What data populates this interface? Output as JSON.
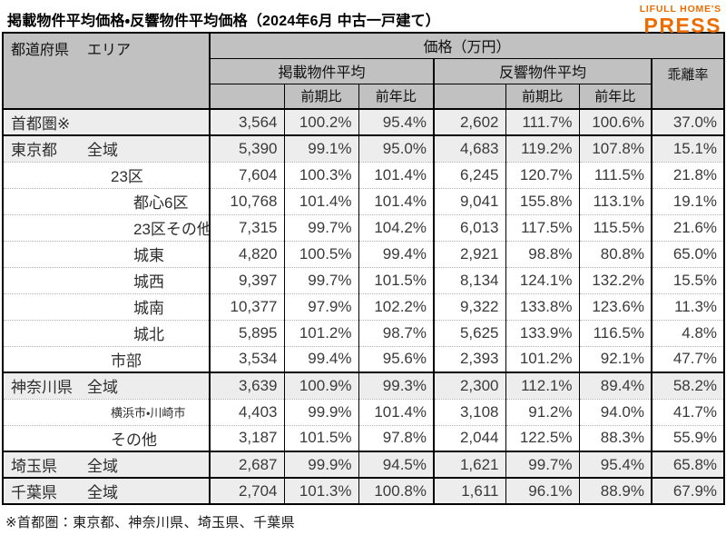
{
  "page": {
    "title": "掲載物件平均価格・反響物件平均価格（2024年6月 中古一戸建て）",
    "note": "※首都圏：東京都、神奈川県、埼玉県、千葉県"
  },
  "logo": {
    "line1": "LIFULL HOME'S",
    "line2": "PRESS",
    "color": "#ed6c00"
  },
  "colors": {
    "header_bg": "#c1c1c1",
    "summary_row_bg": "#ededed",
    "border": "#000000",
    "accent_orange": "#ed6c00"
  },
  "table": {
    "header": {
      "pref_col": "都道府県",
      "area_col": "エリア",
      "price_group": "価格（万円）",
      "listed_group": "掲載物件平均",
      "response_group": "反響物件平均",
      "divergence": "乖離率",
      "prev_period": "前期比",
      "prev_year": "前年比"
    },
    "rows": [
      {
        "pref": "首都圏※",
        "area": "",
        "indent": 0,
        "small": false,
        "summary": true,
        "group_start": false,
        "cells": [
          "3,564",
          "100.2%",
          "95.4%",
          "2,602",
          "111.7%",
          "100.6%",
          "37.0%"
        ]
      },
      {
        "pref": "東京都",
        "area": "全域",
        "indent": 0,
        "small": false,
        "summary": true,
        "group_start": true,
        "cells": [
          "5,390",
          "99.1%",
          "95.0%",
          "4,683",
          "119.2%",
          "107.8%",
          "15.1%"
        ]
      },
      {
        "pref": "",
        "area": "23区",
        "indent": 1,
        "small": false,
        "summary": false,
        "group_start": false,
        "cells": [
          "7,604",
          "100.3%",
          "101.4%",
          "6,245",
          "120.7%",
          "111.5%",
          "21.8%"
        ]
      },
      {
        "pref": "",
        "area": "都心6区",
        "indent": 2,
        "small": false,
        "summary": false,
        "group_start": false,
        "cells": [
          "10,768",
          "101.4%",
          "101.4%",
          "9,041",
          "155.8%",
          "113.1%",
          "19.1%"
        ]
      },
      {
        "pref": "",
        "area": "23区その他",
        "indent": 2,
        "small": false,
        "summary": false,
        "group_start": false,
        "cells": [
          "7,315",
          "99.7%",
          "104.2%",
          "6,013",
          "117.5%",
          "115.5%",
          "21.6%"
        ]
      },
      {
        "pref": "",
        "area": "城東",
        "indent": 2,
        "small": false,
        "summary": false,
        "group_start": false,
        "cells": [
          "4,820",
          "100.5%",
          "99.4%",
          "2,921",
          "98.8%",
          "80.8%",
          "65.0%"
        ]
      },
      {
        "pref": "",
        "area": "城西",
        "indent": 2,
        "small": false,
        "summary": false,
        "group_start": false,
        "cells": [
          "9,397",
          "99.7%",
          "101.5%",
          "8,134",
          "124.1%",
          "132.2%",
          "15.5%"
        ]
      },
      {
        "pref": "",
        "area": "城南",
        "indent": 2,
        "small": false,
        "summary": false,
        "group_start": false,
        "cells": [
          "10,377",
          "97.9%",
          "102.2%",
          "9,322",
          "133.8%",
          "123.6%",
          "11.3%"
        ]
      },
      {
        "pref": "",
        "area": "城北",
        "indent": 2,
        "small": false,
        "summary": false,
        "group_start": false,
        "cells": [
          "5,895",
          "101.2%",
          "98.7%",
          "5,625",
          "133.9%",
          "116.5%",
          "4.8%"
        ]
      },
      {
        "pref": "",
        "area": "市部",
        "indent": 1,
        "small": false,
        "summary": false,
        "group_start": false,
        "cells": [
          "3,534",
          "99.4%",
          "95.6%",
          "2,393",
          "101.2%",
          "92.1%",
          "47.7%"
        ]
      },
      {
        "pref": "神奈川県",
        "area": "全域",
        "indent": 0,
        "small": false,
        "summary": true,
        "group_start": true,
        "cells": [
          "3,639",
          "100.9%",
          "99.3%",
          "2,300",
          "112.1%",
          "89.4%",
          "58.2%"
        ]
      },
      {
        "pref": "",
        "area": "横浜市・川崎市",
        "indent": 1,
        "small": true,
        "summary": false,
        "group_start": false,
        "cells": [
          "4,403",
          "99.9%",
          "101.4%",
          "3,108",
          "91.2%",
          "94.0%",
          "41.7%"
        ]
      },
      {
        "pref": "",
        "area": "その他",
        "indent": 1,
        "small": false,
        "summary": false,
        "group_start": false,
        "cells": [
          "3,187",
          "101.5%",
          "97.8%",
          "2,044",
          "122.5%",
          "88.3%",
          "55.9%"
        ]
      },
      {
        "pref": "埼玉県",
        "area": "全域",
        "indent": 0,
        "small": false,
        "summary": true,
        "group_start": true,
        "cells": [
          "2,687",
          "99.9%",
          "94.5%",
          "1,621",
          "99.7%",
          "95.4%",
          "65.8%"
        ]
      },
      {
        "pref": "千葉県",
        "area": "全域",
        "indent": 0,
        "small": false,
        "summary": true,
        "group_start": true,
        "cells": [
          "2,704",
          "101.3%",
          "100.8%",
          "1,611",
          "96.1%",
          "88.9%",
          "67.9%"
        ]
      }
    ]
  }
}
